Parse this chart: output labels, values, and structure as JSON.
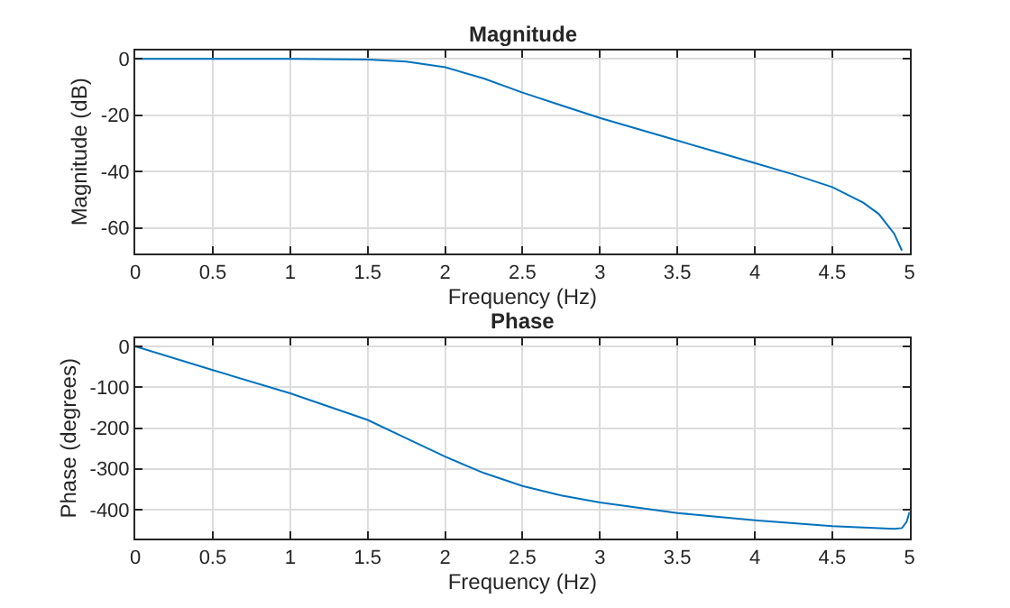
{
  "chart_data": [
    {
      "type": "line",
      "title": "Magnitude",
      "xlabel": "Frequency (Hz)",
      "ylabel": "Magnitude (dB)",
      "x": [
        0,
        0.5,
        1,
        1.5,
        1.75,
        2,
        2.25,
        2.5,
        2.75,
        3,
        3.25,
        3.5,
        3.75,
        4,
        4.25,
        4.5,
        4.7,
        4.8,
        4.9,
        4.95
      ],
      "series": [
        {
          "color": "#0072bd",
          "values": [
            0,
            0,
            0,
            -0.3,
            -1,
            -3,
            -7,
            -12,
            -16.5,
            -21,
            -25,
            -29,
            -33,
            -37,
            -41,
            -45.5,
            -51,
            -55,
            -62,
            -68
          ]
        }
      ],
      "xlim": [
        0,
        5
      ],
      "xticks": [
        0,
        0.5,
        1,
        1.5,
        2,
        2.5,
        3,
        3.5,
        4,
        4.5,
        5
      ],
      "ylim": [
        -69,
        3
      ],
      "yticks": [
        -60,
        -40,
        -20,
        0
      ],
      "grid": true
    },
    {
      "type": "line",
      "title": "Phase",
      "xlabel": "Frequency (Hz)",
      "ylabel": "Phase (degrees)",
      "x": [
        0,
        0.5,
        1,
        1.5,
        1.75,
        2,
        2.25,
        2.5,
        2.75,
        3,
        3.5,
        4,
        4.5,
        4.9,
        4.95,
        4.98,
        5
      ],
      "series": [
        {
          "color": "#0072bd",
          "values": [
            0,
            -58,
            -115,
            -180,
            -225,
            -270,
            -310,
            -342,
            -365,
            -382,
            -408,
            -426,
            -440,
            -447,
            -445,
            -430,
            -405
          ]
        }
      ],
      "xlim": [
        0,
        5
      ],
      "xticks": [
        0,
        0.5,
        1,
        1.5,
        2,
        2.5,
        3,
        3.5,
        4,
        4.5,
        5
      ],
      "ylim": [
        -470,
        20
      ],
      "yticks": [
        -400,
        -300,
        -200,
        -100,
        0
      ],
      "grid": true
    }
  ]
}
